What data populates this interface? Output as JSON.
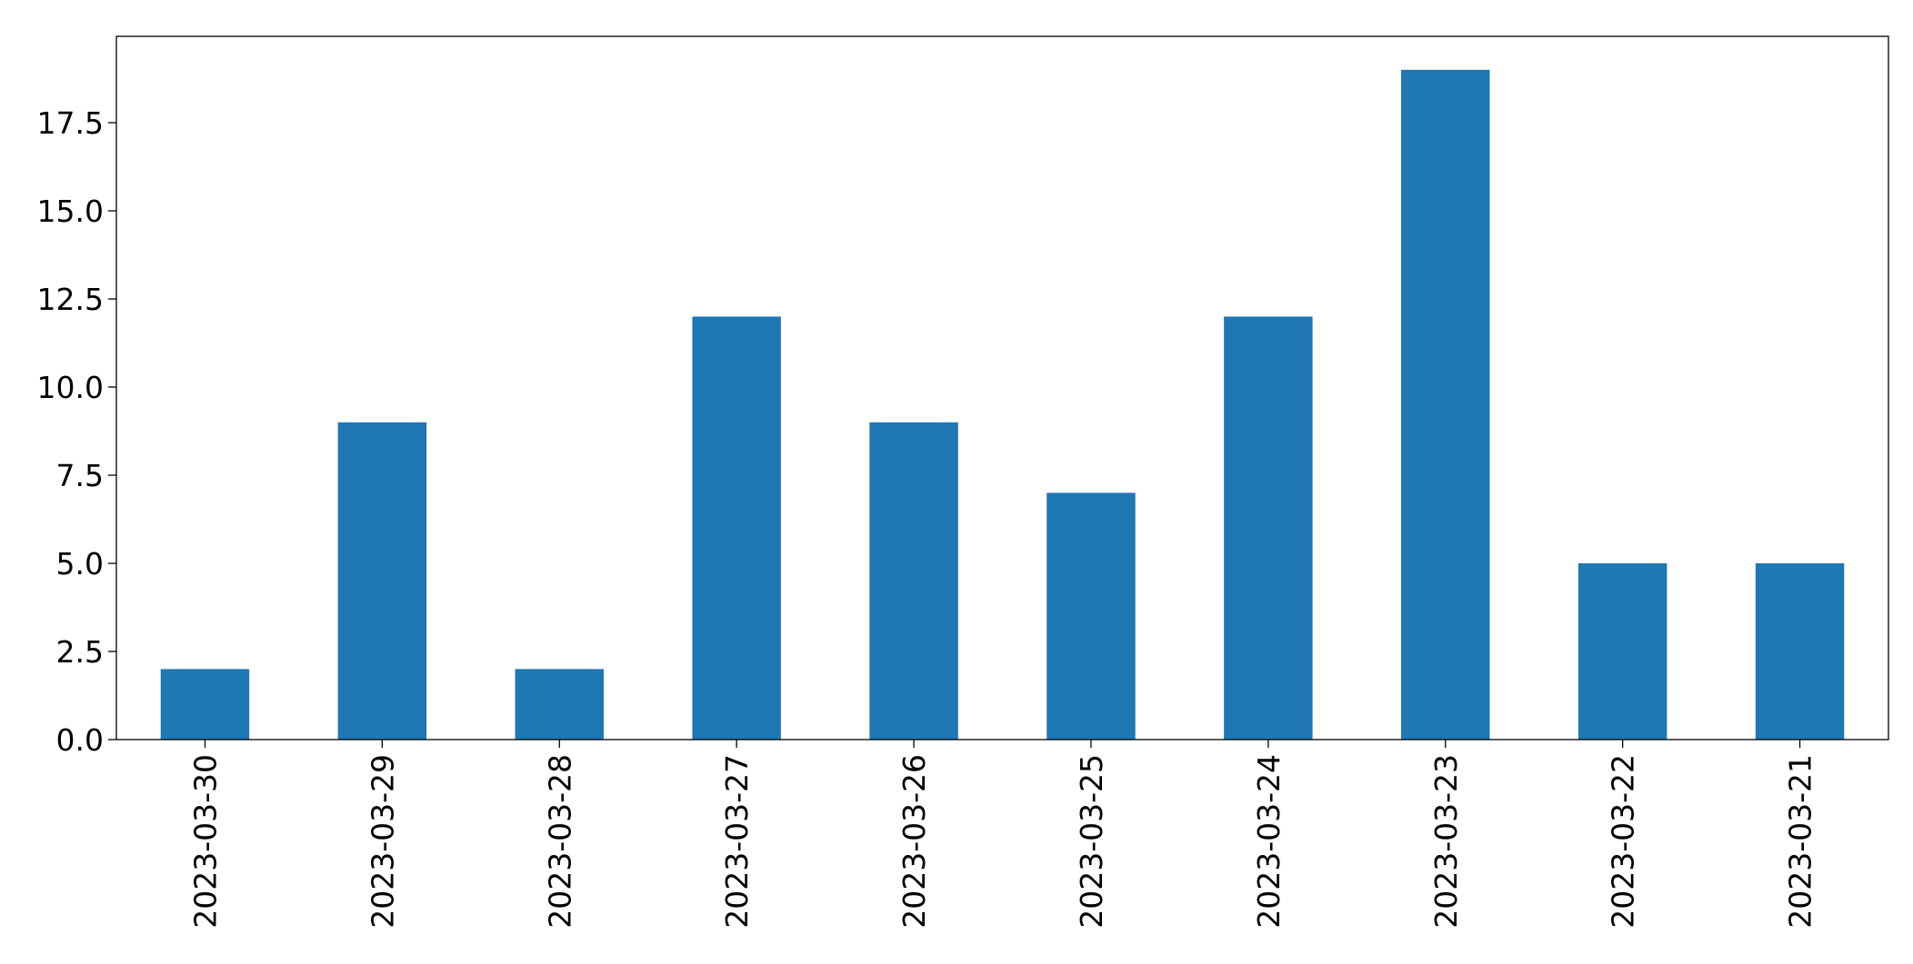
{
  "chart_data": {
    "type": "bar",
    "title": "",
    "xlabel": "",
    "ylabel": "",
    "categories": [
      "2023-03-30",
      "2023-03-29",
      "2023-03-28",
      "2023-03-27",
      "2023-03-26",
      "2023-03-25",
      "2023-03-24",
      "2023-03-23",
      "2023-03-22",
      "2023-03-21"
    ],
    "values": [
      2,
      9,
      2,
      12,
      9,
      7,
      12,
      19,
      5,
      5
    ],
    "ylim": [
      0,
      19.95
    ],
    "yticks": [
      0.0,
      2.5,
      5.0,
      7.5,
      10.0,
      12.5,
      15.0,
      17.5
    ],
    "ytick_labels": [
      "0.0",
      "2.5",
      "5.0",
      "7.5",
      "10.0",
      "12.5",
      "15.0",
      "17.5"
    ],
    "grid": false,
    "bar_color": "#1f77b4",
    "axis_color": "#000000"
  }
}
